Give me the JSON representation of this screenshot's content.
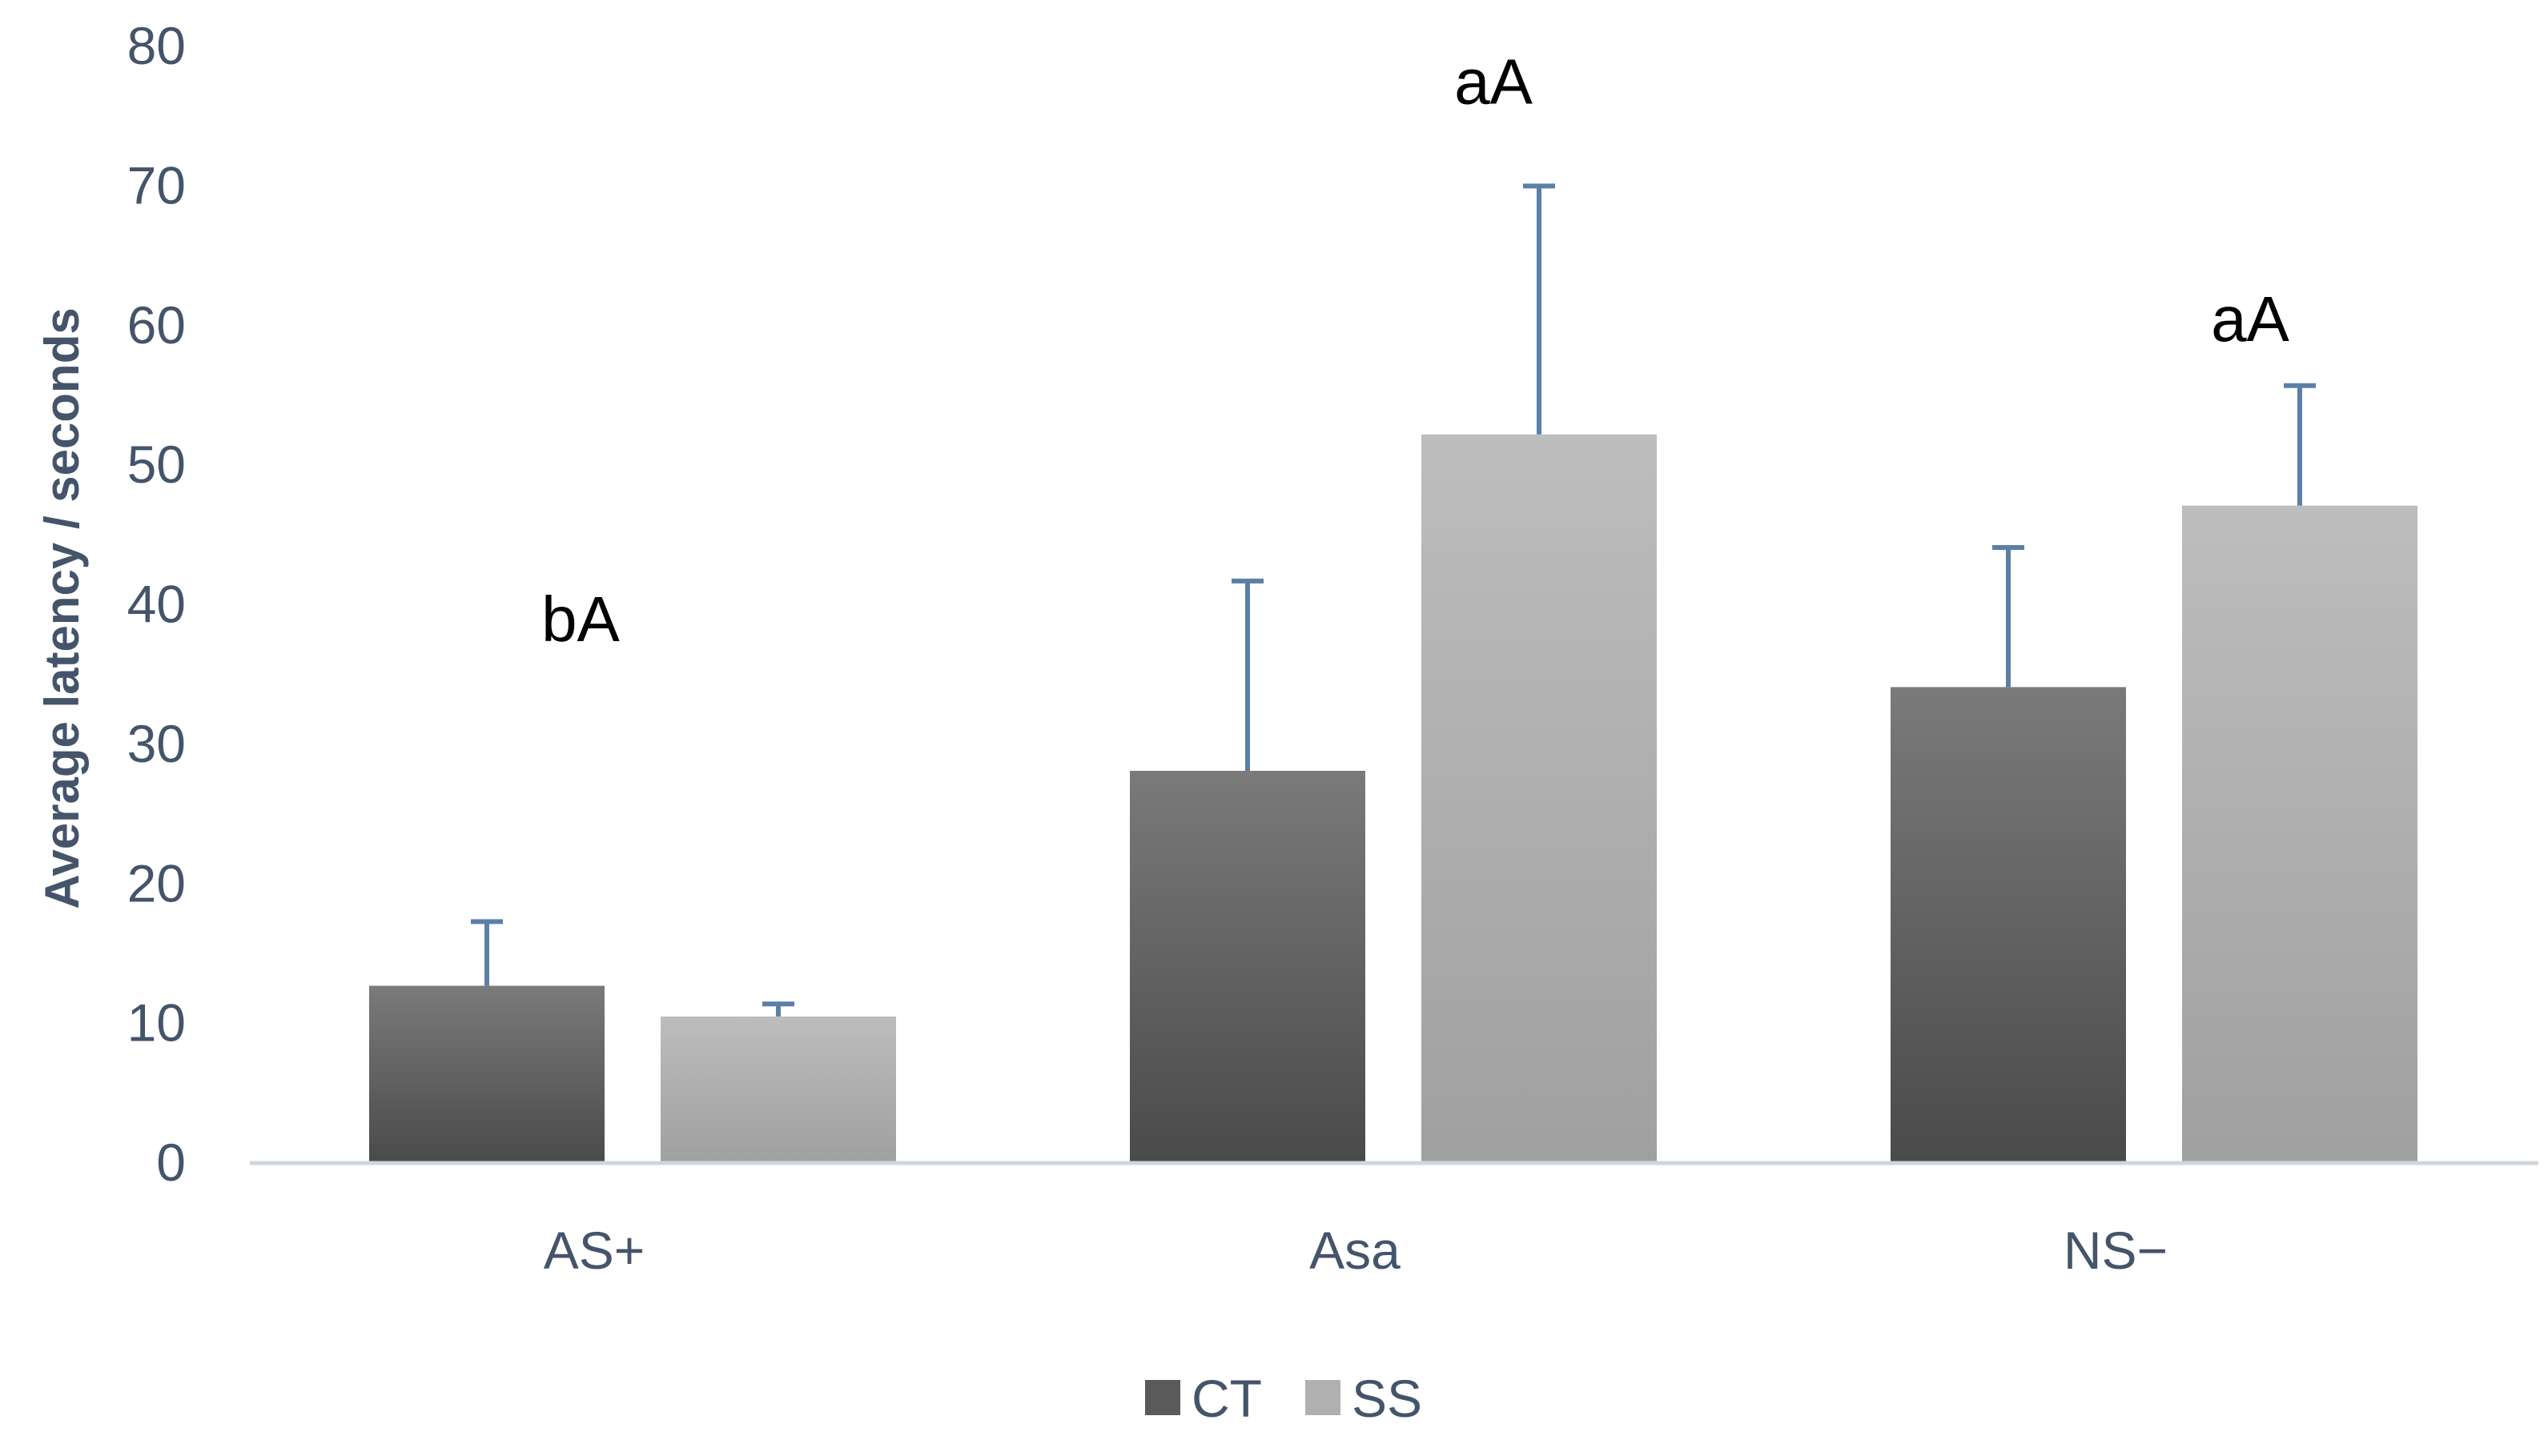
{
  "chart_data": {
    "type": "bar",
    "ylabel": "Average latency / seconds",
    "ylim": [
      0,
      80
    ],
    "yticks": [
      0,
      10,
      20,
      30,
      40,
      50,
      60,
      70,
      80
    ],
    "categories": [
      "AS+",
      "Asa",
      "NS−"
    ],
    "series": [
      {
        "name": "CT",
        "values": [
          12.7,
          28.1,
          34.1
        ],
        "error_plus": [
          4.6,
          13.6,
          10.0
        ],
        "color": "#5a5a5a"
      },
      {
        "name": "SS",
        "values": [
          10.5,
          52.2,
          47.1
        ],
        "error_plus": [
          0.9,
          17.8,
          8.6
        ],
        "color": "#b0b0b0"
      }
    ],
    "annotations": [
      {
        "category": "AS+",
        "text": "bA",
        "y": 39
      },
      {
        "category": "Asa",
        "text": "aA",
        "y": 77.5
      },
      {
        "category": "NS−",
        "text": "aA",
        "y": 60.5
      }
    ],
    "grid": false,
    "legend": "bottom-center",
    "axis_color": "#d0d6de",
    "error_bar_color": "#5b7fa6"
  }
}
